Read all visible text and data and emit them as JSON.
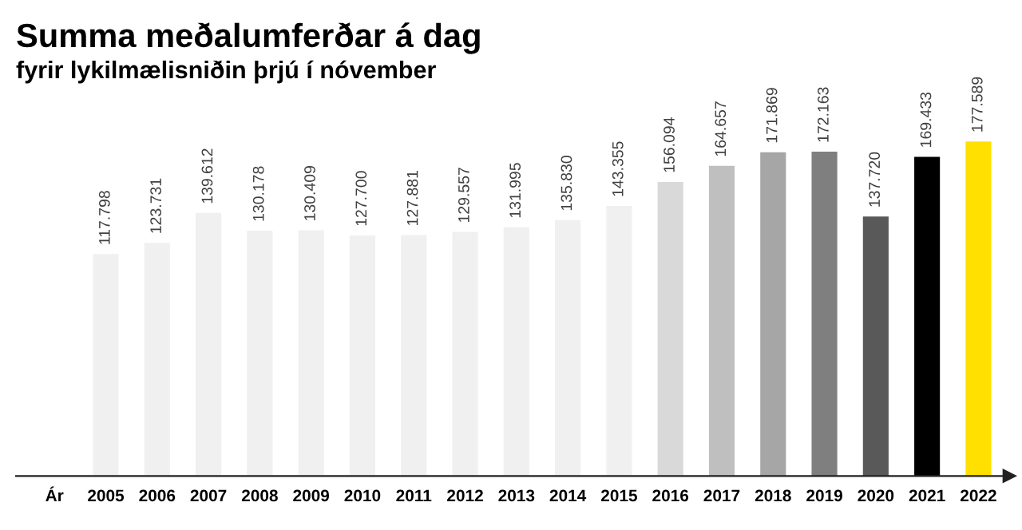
{
  "chart_data": {
    "type": "bar",
    "title": "Summa meðalumferðar á dag",
    "subtitle": "fyrir lykilmælisniðin þrjú í nóvember",
    "categories": [
      "Ár",
      "2005",
      "2006",
      "2007",
      "2008",
      "2009",
      "2010",
      "2011",
      "2012",
      "2013",
      "2014",
      "2015",
      "2016",
      "2017",
      "2018",
      "2019",
      "2020",
      "2021",
      "2022"
    ],
    "values": [
      null,
      117798,
      123731,
      139612,
      130178,
      130409,
      127700,
      127881,
      129557,
      131995,
      135830,
      143355,
      156094,
      164657,
      171869,
      172163,
      137720,
      169433,
      177589
    ],
    "value_labels": [
      null,
      "117.798",
      "123.731",
      "139.612",
      "130.178",
      "130.409",
      "127.700",
      "127.881",
      "129.557",
      "131.995",
      "135.830",
      "143.355",
      "156.094",
      "164.657",
      "171.869",
      "172.163",
      "137.720",
      "169.433",
      "177.589"
    ],
    "colors": [
      "#f0f0f0",
      "#f0f0f0",
      "#f0f0f0",
      "#f0f0f0",
      "#f0f0f0",
      "#f0f0f0",
      "#f0f0f0",
      "#f0f0f0",
      "#f0f0f0",
      "#f0f0f0",
      "#f0f0f0",
      "#f0f0f0",
      "#d9d9d9",
      "#bfbfbf",
      "#a6a6a6",
      "#7f7f7f",
      "#595959",
      "#000000",
      "#ffe000"
    ],
    "tick_labels": "x"
  }
}
